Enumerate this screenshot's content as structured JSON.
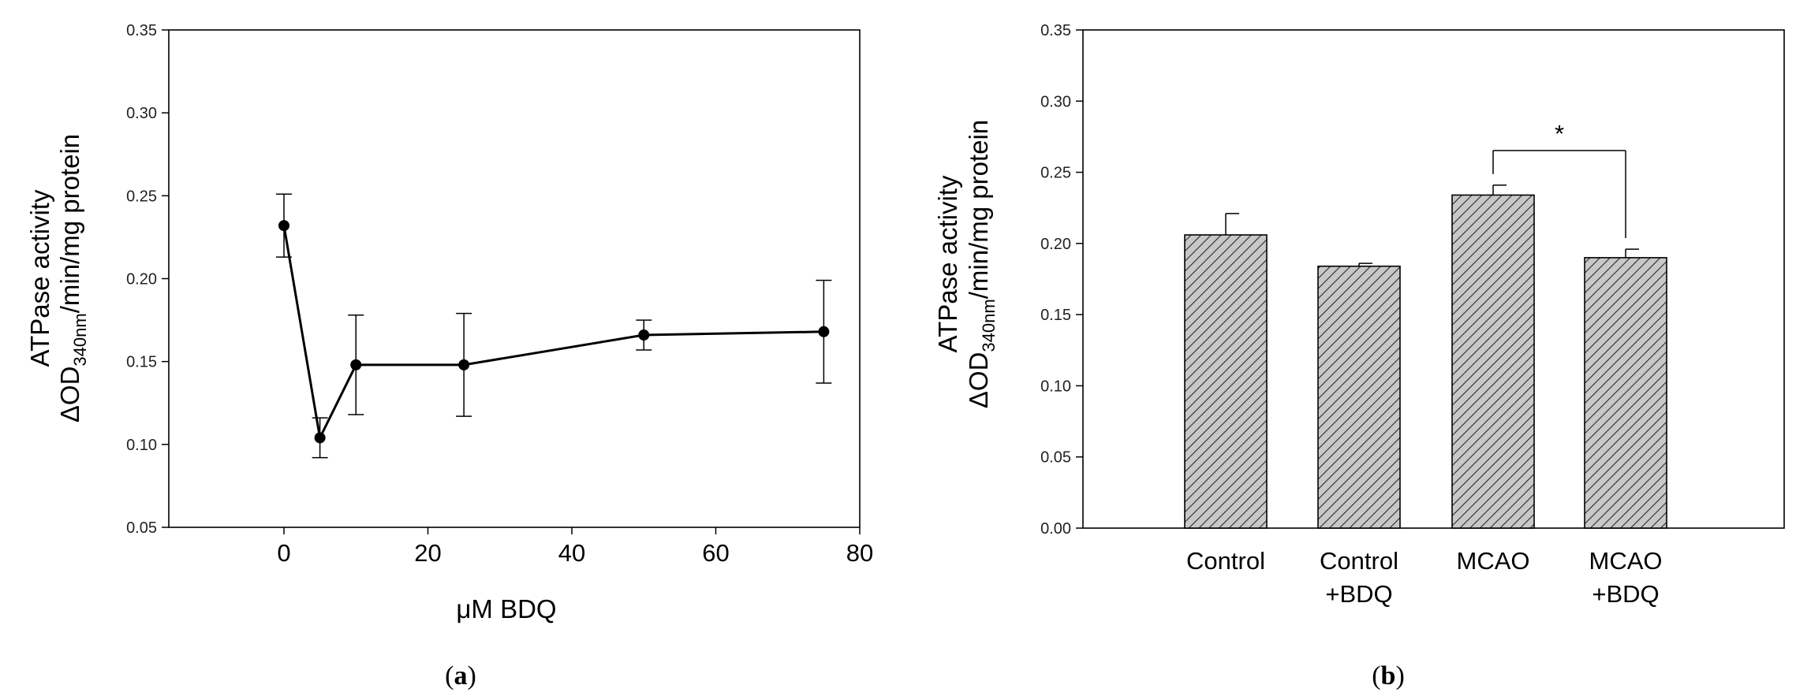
{
  "chart_data": [
    {
      "type": "line",
      "panel_label": "a",
      "ylabel_line1": "ATPase activity",
      "ylabel_line2_prefix": "ΔOD",
      "ylabel_line2_sub": "340nm",
      "ylabel_line2_suffix": "/min/mg protein",
      "xlabel_prefix": "μ",
      "xlabel_rest": "M BDQ",
      "xlim": [
        -16,
        80
      ],
      "ylim": [
        0.05,
        0.35
      ],
      "xticks": [
        0,
        20,
        40,
        60,
        80
      ],
      "xtick_labels": [
        "0",
        "20",
        "40",
        "60",
        "80"
      ],
      "yticks": [
        0.05,
        0.1,
        0.15,
        0.2,
        0.25,
        0.3,
        0.35
      ],
      "ytick_labels": [
        "0.05",
        "0.10",
        "0.15",
        "0.20",
        "0.25",
        "0.30",
        "0.35"
      ],
      "series": [
        {
          "name": "ATPase activity",
          "x": [
            0,
            5,
            10,
            25,
            50,
            75
          ],
          "y": [
            0.232,
            0.104,
            0.148,
            0.148,
            0.166,
            0.168
          ],
          "error": [
            0.019,
            0.012,
            0.03,
            0.031,
            0.009,
            0.031
          ]
        }
      ]
    },
    {
      "type": "bar",
      "panel_label": "b",
      "ylabel_line1": "ATPase activity",
      "ylabel_line2_prefix": "ΔOD",
      "ylabel_line2_sub": "340nm",
      "ylabel_line2_suffix": "/min/mg protein",
      "categories": [
        [
          "Control"
        ],
        [
          "Control",
          "+BDQ"
        ],
        [
          "MCAO"
        ],
        [
          "MCAO",
          "+BDQ"
        ]
      ],
      "values": [
        0.206,
        0.184,
        0.234,
        0.19
      ],
      "error": [
        0.015,
        0.002,
        0.007,
        0.006
      ],
      "ylim": [
        0.0,
        0.35
      ],
      "yticks": [
        0.0,
        0.05,
        0.1,
        0.15,
        0.2,
        0.25,
        0.3,
        0.35
      ],
      "ytick_labels": [
        "0.00",
        "0.05",
        "0.10",
        "0.15",
        "0.20",
        "0.25",
        "0.30",
        "0.35"
      ],
      "annotation": {
        "text": "*",
        "between": [
          2,
          3
        ]
      },
      "bar_fill": "#c8c8c8",
      "hatch_color": "#2a2a2a"
    }
  ]
}
